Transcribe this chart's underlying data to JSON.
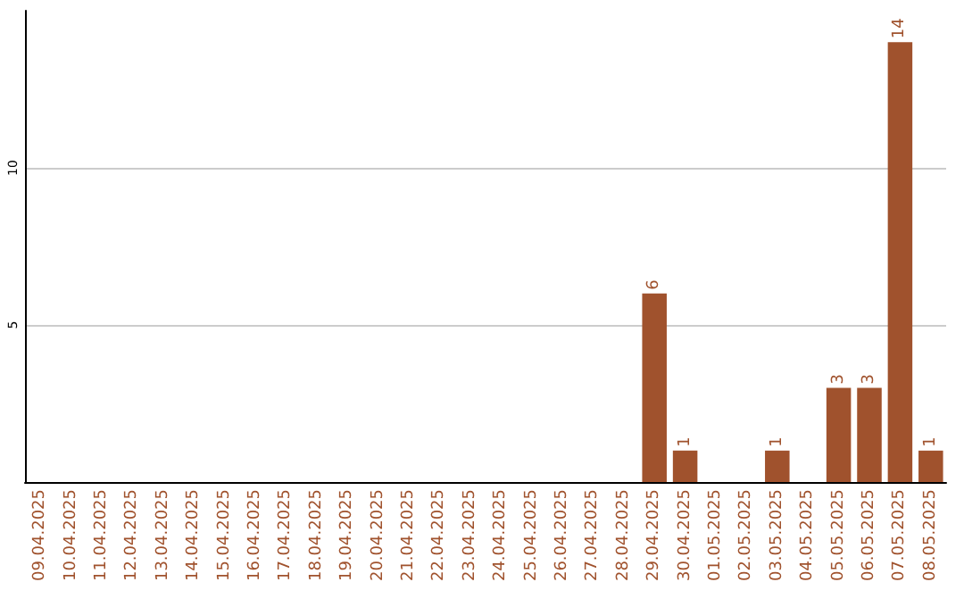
{
  "chart_data": {
    "type": "bar",
    "categories": [
      "09.04.2025",
      "10.04.2025",
      "11.04.2025",
      "12.04.2025",
      "13.04.2025",
      "14.04.2025",
      "15.04.2025",
      "16.04.2025",
      "17.04.2025",
      "18.04.2025",
      "19.04.2025",
      "20.04.2025",
      "21.04.2025",
      "22.04.2025",
      "23.04.2025",
      "24.04.2025",
      "25.04.2025",
      "26.04.2025",
      "27.04.2025",
      "28.04.2025",
      "29.04.2025",
      "30.04.2025",
      "01.05.2025",
      "02.05.2025",
      "03.05.2025",
      "04.05.2025",
      "05.05.2025",
      "06.05.2025",
      "07.05.2025",
      "08.05.2025"
    ],
    "values": [
      0,
      0,
      0,
      0,
      0,
      0,
      0,
      0,
      0,
      0,
      0,
      0,
      0,
      0,
      0,
      0,
      0,
      0,
      0,
      0,
      6,
      1,
      0,
      0,
      1,
      0,
      3,
      3,
      14,
      1
    ],
    "value_labels": [
      null,
      null,
      null,
      null,
      null,
      null,
      null,
      null,
      null,
      null,
      null,
      null,
      null,
      null,
      null,
      null,
      null,
      null,
      null,
      null,
      "6",
      "1",
      null,
      null,
      "1",
      null,
      "3",
      "3",
      "14",
      "1"
    ],
    "color": "#a0522d",
    "ylim": [
      0,
      15
    ],
    "yticks": [
      5,
      10
    ],
    "grid": "y"
  }
}
